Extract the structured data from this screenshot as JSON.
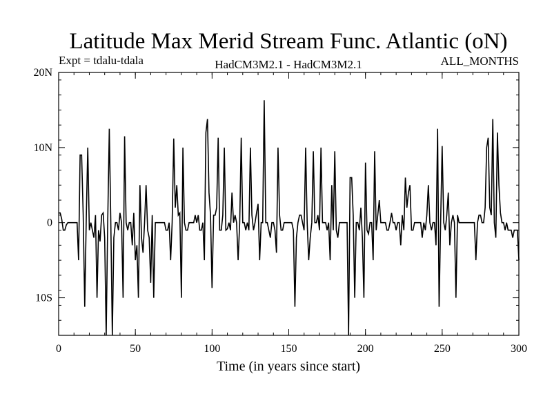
{
  "chart_data": {
    "type": "line",
    "title": "Latitude Max Merid Stream Func. Atlantic (oN)",
    "subtitle_left": "Expt = tdalu-tdala",
    "subtitle_center": "HadCM3M2.1 - HadCM3M2.1",
    "subtitle_right": "ALL_MONTHS",
    "xlabel": "Time (in years since start)",
    "ylabel": "",
    "xlim": [
      0,
      300
    ],
    "ylim": [
      -15,
      20
    ],
    "x_ticks": [
      0,
      50,
      100,
      150,
      200,
      250,
      300
    ],
    "x_tick_labels": [
      "0",
      "50",
      "100",
      "150",
      "200",
      "250",
      "300"
    ],
    "y_ticks": [
      -10,
      0,
      10,
      20
    ],
    "y_tick_labels": [
      "10S",
      "0",
      "10N",
      "20N"
    ],
    "grid": false,
    "series": [
      {
        "color": "#000000",
        "points": [
          [
            0,
            1.3
          ],
          [
            1,
            1.3
          ],
          [
            2,
            0.5
          ],
          [
            3,
            -1
          ],
          [
            4,
            -1
          ],
          [
            5,
            -0.3
          ],
          [
            6,
            0
          ],
          [
            7,
            0
          ],
          [
            8,
            0
          ],
          [
            9,
            0
          ],
          [
            10,
            0
          ],
          [
            11,
            0
          ],
          [
            12,
            0
          ],
          [
            13,
            -5
          ],
          [
            14,
            9
          ],
          [
            15,
            9
          ],
          [
            16,
            1
          ],
          [
            17,
            -11.2
          ],
          [
            18,
            0.5
          ],
          [
            19,
            10
          ],
          [
            20,
            -1
          ],
          [
            21,
            0
          ],
          [
            22,
            -1
          ],
          [
            23,
            -2
          ],
          [
            24,
            1
          ],
          [
            25,
            -10
          ],
          [
            26,
            -1
          ],
          [
            27,
            -2.5
          ],
          [
            28,
            1
          ],
          [
            29,
            1.3
          ],
          [
            30,
            -2
          ],
          [
            31,
            -15
          ],
          [
            32,
            0
          ],
          [
            33,
            12.5
          ],
          [
            34,
            0
          ],
          [
            35,
            -15
          ],
          [
            36,
            -2
          ],
          [
            37,
            0
          ],
          [
            38,
            0
          ],
          [
            39,
            -1
          ],
          [
            40,
            1.3
          ],
          [
            41,
            0
          ],
          [
            42,
            -10
          ],
          [
            43,
            11.5
          ],
          [
            44,
            0
          ],
          [
            45,
            -1
          ],
          [
            46,
            0
          ],
          [
            47,
            0
          ],
          [
            48,
            -3
          ],
          [
            49,
            1.3
          ],
          [
            50,
            -5
          ],
          [
            51,
            -3
          ],
          [
            52,
            -10
          ],
          [
            53,
            5
          ],
          [
            54,
            -2
          ],
          [
            55,
            -4
          ],
          [
            56,
            0
          ],
          [
            57,
            5
          ],
          [
            58,
            -1
          ],
          [
            59,
            -2
          ],
          [
            60,
            -8
          ],
          [
            61,
            1
          ],
          [
            62,
            -10
          ],
          [
            63,
            0
          ],
          [
            64,
            0
          ],
          [
            65,
            0
          ],
          [
            66,
            0
          ],
          [
            67,
            0
          ],
          [
            68,
            0
          ],
          [
            69,
            0
          ],
          [
            70,
            -1
          ],
          [
            71,
            -1
          ],
          [
            72,
            0
          ],
          [
            73,
            -5
          ],
          [
            74,
            0
          ],
          [
            75,
            11.2
          ],
          [
            76,
            2
          ],
          [
            77,
            5
          ],
          [
            78,
            1
          ],
          [
            79,
            1.3
          ],
          [
            80,
            -10
          ],
          [
            81,
            10
          ],
          [
            82,
            0
          ],
          [
            83,
            -1
          ],
          [
            84,
            -1
          ],
          [
            85,
            0
          ],
          [
            86,
            0
          ],
          [
            87,
            0
          ],
          [
            88,
            0
          ],
          [
            89,
            1
          ],
          [
            90,
            0
          ],
          [
            91,
            1
          ],
          [
            92,
            -1
          ],
          [
            93,
            -1
          ],
          [
            94,
            0
          ],
          [
            95,
            -5
          ],
          [
            96,
            12
          ],
          [
            97,
            13.8
          ],
          [
            98,
            4
          ],
          [
            99,
            1
          ],
          [
            100,
            -8.7
          ],
          [
            101,
            1
          ],
          [
            102,
            1
          ],
          [
            103,
            2
          ],
          [
            104,
            11.3
          ],
          [
            105,
            -1
          ],
          [
            106,
            -1
          ],
          [
            107,
            1
          ],
          [
            108,
            10
          ],
          [
            109,
            -1
          ],
          [
            110,
            -0.8
          ],
          [
            111,
            0
          ],
          [
            112,
            -1
          ],
          [
            113,
            4
          ],
          [
            114,
            0
          ],
          [
            115,
            1
          ],
          [
            116,
            0
          ],
          [
            117,
            -5
          ],
          [
            118,
            0
          ],
          [
            119,
            11.3
          ],
          [
            120,
            0
          ],
          [
            121,
            0
          ],
          [
            122,
            -1
          ],
          [
            123,
            0
          ],
          [
            124,
            -1
          ],
          [
            125,
            10
          ],
          [
            126,
            1
          ],
          [
            127,
            -1
          ],
          [
            128,
            0
          ],
          [
            129,
            1.3
          ],
          [
            130,
            2.5
          ],
          [
            131,
            -5
          ],
          [
            132,
            0
          ],
          [
            133,
            0
          ],
          [
            134,
            16.3
          ],
          [
            135,
            0
          ],
          [
            136,
            0
          ],
          [
            137,
            -1
          ],
          [
            138,
            -2
          ],
          [
            139,
            0
          ],
          [
            140,
            0
          ],
          [
            141,
            -1
          ],
          [
            142,
            -4
          ],
          [
            143,
            10
          ],
          [
            144,
            1
          ],
          [
            145,
            -1
          ],
          [
            146,
            -1
          ],
          [
            147,
            0
          ],
          [
            148,
            0
          ],
          [
            149,
            0
          ],
          [
            150,
            0
          ],
          [
            151,
            0
          ],
          [
            152,
            0
          ],
          [
            153,
            -1
          ],
          [
            154,
            -11.2
          ],
          [
            155,
            -2
          ],
          [
            156,
            0
          ],
          [
            157,
            1
          ],
          [
            158,
            1
          ],
          [
            159,
            0
          ],
          [
            160,
            -1
          ],
          [
            161,
            10
          ],
          [
            162,
            0
          ],
          [
            163,
            -5
          ],
          [
            164,
            -2
          ],
          [
            165,
            0
          ],
          [
            166,
            9.5
          ],
          [
            167,
            0
          ],
          [
            168,
            0
          ],
          [
            169,
            1
          ],
          [
            170,
            -1
          ],
          [
            171,
            10
          ],
          [
            172,
            0
          ],
          [
            173,
            0
          ],
          [
            174,
            0
          ],
          [
            175,
            -1
          ],
          [
            176,
            0
          ],
          [
            177,
            -5
          ],
          [
            178,
            5
          ],
          [
            179,
            -1
          ],
          [
            180,
            9.5
          ],
          [
            181,
            -1
          ],
          [
            182,
            -2
          ],
          [
            183,
            0
          ],
          [
            184,
            0
          ],
          [
            185,
            0
          ],
          [
            186,
            0
          ],
          [
            187,
            0
          ],
          [
            188,
            0
          ],
          [
            189,
            -15
          ],
          [
            190,
            6
          ],
          [
            191,
            6
          ],
          [
            192,
            1
          ],
          [
            193,
            -10
          ],
          [
            194,
            0
          ],
          [
            195,
            0
          ],
          [
            196,
            -1
          ],
          [
            197,
            2
          ],
          [
            198,
            -2
          ],
          [
            199,
            -10
          ],
          [
            200,
            8
          ],
          [
            201,
            -1
          ],
          [
            202,
            -1.5
          ],
          [
            203,
            0
          ],
          [
            204,
            0
          ],
          [
            205,
            -5
          ],
          [
            206,
            9.5
          ],
          [
            207,
            -1
          ],
          [
            208,
            1
          ],
          [
            209,
            3
          ],
          [
            210,
            0
          ],
          [
            211,
            0
          ],
          [
            212,
            0
          ],
          [
            213,
            0
          ],
          [
            214,
            -1
          ],
          [
            215,
            -1
          ],
          [
            216,
            0
          ],
          [
            217,
            1.3
          ],
          [
            218,
            0
          ],
          [
            219,
            0
          ],
          [
            220,
            -1
          ],
          [
            221,
            0
          ],
          [
            222,
            0
          ],
          [
            223,
            -3
          ],
          [
            224,
            1
          ],
          [
            225,
            -1
          ],
          [
            226,
            6
          ],
          [
            227,
            2
          ],
          [
            228,
            4
          ],
          [
            229,
            5
          ],
          [
            230,
            -1
          ],
          [
            231,
            -1
          ],
          [
            232,
            0
          ],
          [
            233,
            0
          ],
          [
            234,
            0
          ],
          [
            235,
            0
          ],
          [
            236,
            0
          ],
          [
            237,
            -2
          ],
          [
            238,
            0
          ],
          [
            239,
            -1
          ],
          [
            240,
            1
          ],
          [
            241,
            5
          ],
          [
            242,
            0
          ],
          [
            243,
            -1
          ],
          [
            244,
            0
          ],
          [
            245,
            0
          ],
          [
            246,
            -3
          ],
          [
            247,
            12.5
          ],
          [
            248,
            -11.2
          ],
          [
            249,
            0
          ],
          [
            250,
            10.2
          ],
          [
            251,
            0
          ],
          [
            252,
            -1
          ],
          [
            253,
            1
          ],
          [
            254,
            4
          ],
          [
            255,
            -3
          ],
          [
            256,
            0
          ],
          [
            257,
            1
          ],
          [
            258,
            0
          ],
          [
            259,
            -10
          ],
          [
            260,
            1
          ],
          [
            261,
            0
          ],
          [
            262,
            0
          ],
          [
            263,
            0
          ],
          [
            264,
            0
          ],
          [
            265,
            0
          ],
          [
            266,
            0
          ],
          [
            267,
            0
          ],
          [
            268,
            0
          ],
          [
            269,
            0
          ],
          [
            270,
            0
          ],
          [
            271,
            0
          ],
          [
            272,
            -5
          ],
          [
            273,
            0
          ],
          [
            274,
            1
          ],
          [
            275,
            1
          ],
          [
            276,
            0
          ],
          [
            277,
            0
          ],
          [
            278,
            2
          ],
          [
            279,
            10
          ],
          [
            280,
            11.3
          ],
          [
            281,
            2
          ],
          [
            282,
            1
          ],
          [
            283,
            13.8
          ],
          [
            284,
            0
          ],
          [
            285,
            -2
          ],
          [
            286,
            12
          ],
          [
            287,
            5
          ],
          [
            288,
            1.3
          ],
          [
            289,
            0
          ],
          [
            290,
            0
          ],
          [
            291,
            -1
          ],
          [
            292,
            0
          ],
          [
            293,
            -1
          ],
          [
            294,
            -1
          ],
          [
            295,
            -1
          ],
          [
            296,
            -2
          ],
          [
            297,
            -1
          ],
          [
            298,
            -1
          ],
          [
            299,
            -1
          ],
          [
            300,
            -5
          ]
        ]
      }
    ]
  }
}
